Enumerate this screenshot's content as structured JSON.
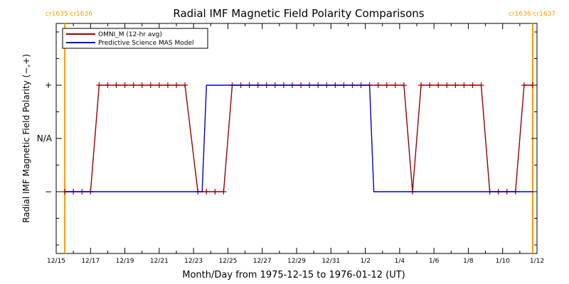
{
  "chart_data": {
    "type": "line",
    "title": "Radial IMF Magnetic Field Polarity Comparisons",
    "xlabel": "Month/Day from 1975-12-15 to 1976-01-12 (UT)",
    "ylabel": "Radial IMF Magnetic Field Polarity (−,+)",
    "x_start_date": "1975-12-15",
    "x_range": [
      "1975-12-15",
      "1976-01-12"
    ],
    "x_tick_labels": [
      "12/15",
      "12/17",
      "12/19",
      "12/21",
      "12/23",
      "12/25",
      "12/27",
      "12/29",
      "12/31",
      "1/2",
      "1/4",
      "1/6",
      "1/8",
      "1/10",
      "1/12"
    ],
    "y_categories": [
      "−",
      "N/A",
      "+"
    ],
    "carrington_markers": [
      {
        "label": "cr1635 cr1636",
        "date": "1975-12-15 12:00",
        "color": "#FF9900",
        "anchor": "left"
      },
      {
        "label": "cr1636 cr1637",
        "date": "1976-01-11 18:00",
        "color": "#FF9900",
        "anchor": "right"
      }
    ],
    "legend": {
      "placement": "top-left"
    },
    "series": [
      {
        "name": "OMNI_M (12-hr avg)",
        "color": "#990000",
        "marker": "plus",
        "points": [
          [
            "1975-12-15 12:00",
            "−"
          ],
          [
            "1975-12-16 00:00",
            "−"
          ],
          [
            "1975-12-16 12:00",
            "−"
          ],
          [
            "1975-12-17 00:00",
            "−"
          ],
          [
            "1975-12-17 12:00",
            "+"
          ],
          [
            "1975-12-18 00:00",
            "+"
          ],
          [
            "1975-12-18 12:00",
            "+"
          ],
          [
            "1975-12-19 00:00",
            "+"
          ],
          [
            "1975-12-19 12:00",
            "+"
          ],
          [
            "1975-12-20 00:00",
            "+"
          ],
          [
            "1975-12-20 12:00",
            "+"
          ],
          [
            "1975-12-21 00:00",
            "+"
          ],
          [
            "1975-12-21 12:00",
            "+"
          ],
          [
            "1975-12-22 00:00",
            "+"
          ],
          [
            "1975-12-22 12:00",
            "+"
          ],
          [
            "1975-12-23 06:00",
            "−"
          ],
          [
            "1975-12-23 18:00",
            "−"
          ],
          [
            "1975-12-24 06:00",
            "−"
          ],
          [
            "1975-12-24 18:00",
            "−"
          ],
          [
            "1975-12-25 06:00",
            "+"
          ],
          [
            "1975-12-25 18:00",
            "+"
          ],
          [
            "1975-12-26 06:00",
            "+"
          ],
          [
            "1975-12-26 18:00",
            "+"
          ],
          [
            "1975-12-27 06:00",
            "+"
          ],
          [
            "1975-12-27 18:00",
            "+"
          ],
          [
            "1975-12-28 06:00",
            "+"
          ],
          [
            "1975-12-28 18:00",
            "+"
          ],
          [
            "1975-12-29 06:00",
            "+"
          ],
          [
            "1975-12-29 18:00",
            "+"
          ],
          [
            "1975-12-30 06:00",
            "+"
          ],
          [
            "1975-12-30 18:00",
            "+"
          ],
          [
            "1975-12-31 06:00",
            "+"
          ],
          [
            "1975-12-31 18:00",
            "+"
          ],
          [
            "1976-01-01 06:00",
            "+"
          ],
          [
            "1976-01-01 18:00",
            "+"
          ],
          [
            "1976-01-02 06:00",
            "+"
          ],
          [
            "1976-01-02 18:00",
            "+"
          ],
          [
            "1976-01-03 06:00",
            "+"
          ],
          [
            "1976-01-03 18:00",
            "+"
          ],
          [
            "1976-01-04 06:00",
            "+"
          ],
          [
            "1976-01-04 18:00",
            "−"
          ],
          [
            "1976-01-05 06:00",
            "+"
          ],
          [
            "1976-01-05 18:00",
            "+"
          ],
          [
            "1976-01-06 06:00",
            "+"
          ],
          [
            "1976-01-06 18:00",
            "+"
          ],
          [
            "1976-01-07 06:00",
            "+"
          ],
          [
            "1976-01-07 18:00",
            "+"
          ],
          [
            "1976-01-08 06:00",
            "+"
          ],
          [
            "1976-01-08 18:00",
            "+"
          ],
          [
            "1976-01-09 06:00",
            "−"
          ],
          [
            "1976-01-09 18:00",
            "−"
          ],
          [
            "1976-01-10 06:00",
            "−"
          ],
          [
            "1976-01-10 18:00",
            "−"
          ],
          [
            "1976-01-11 06:00",
            "+"
          ],
          [
            "1976-01-11 18:00",
            "+"
          ]
        ]
      },
      {
        "name": "Predictive Science MAS Model",
        "color": "#0000CC",
        "marker": "none",
        "points": [
          [
            "1975-12-15 12:00",
            "−"
          ],
          [
            "1975-12-23 12:00",
            "−"
          ],
          [
            "1975-12-23 18:00",
            "+"
          ],
          [
            "1976-01-02 06:00",
            "+"
          ],
          [
            "1976-01-02 12:00",
            "−"
          ],
          [
            "1976-01-11 18:00",
            "−"
          ]
        ]
      }
    ]
  }
}
